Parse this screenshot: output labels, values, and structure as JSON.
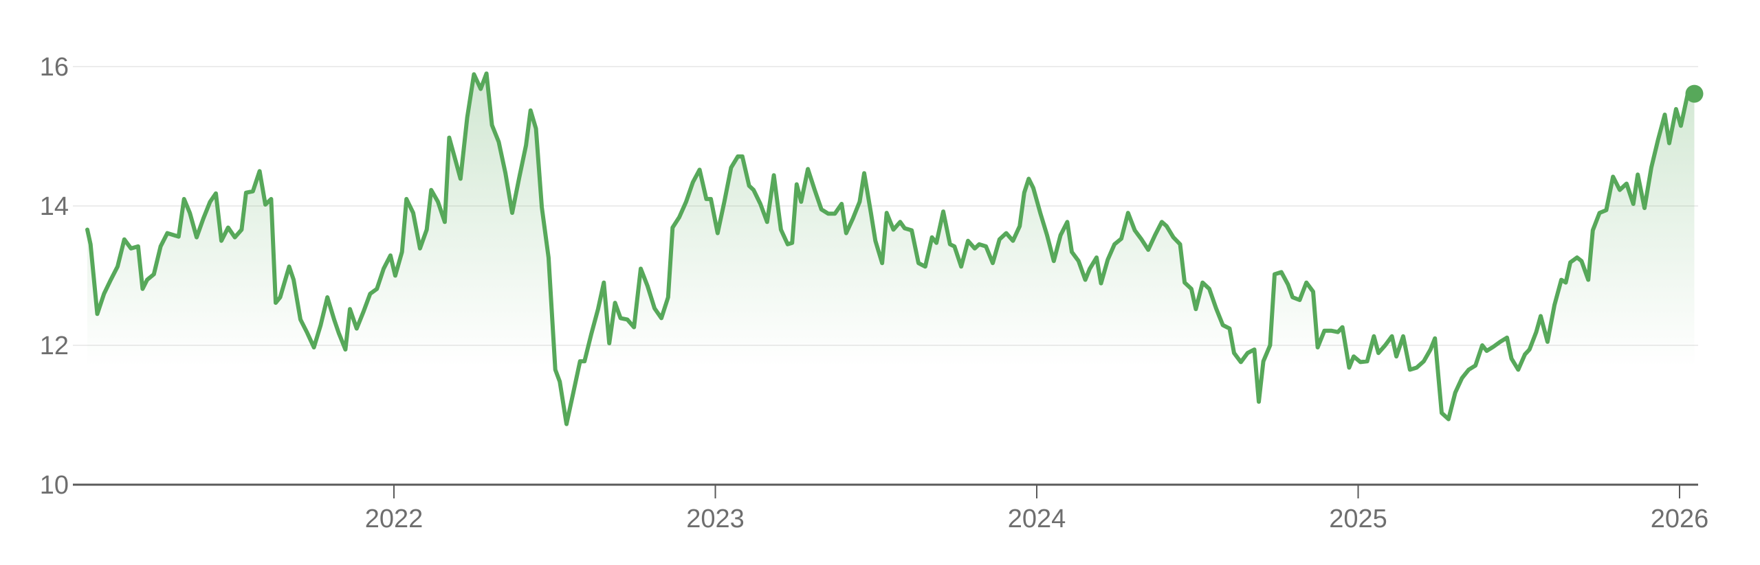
{
  "chart_data": {
    "type": "line",
    "title": "",
    "xlabel": "",
    "ylabel": "",
    "ylim": [
      10,
      16
    ],
    "yticks": [
      "10",
      "12",
      "14",
      "16"
    ],
    "xticks": [
      "2022",
      "2023",
      "2024",
      "2025",
      "2026"
    ],
    "grid": "horizontal",
    "line_color": "#57a85a",
    "fill": "green gradient area under line",
    "end_marker": true,
    "x": [
      2021.046,
      2021.056,
      2021.077,
      2021.098,
      2021.119,
      2021.14,
      2021.161,
      2021.182,
      2021.204,
      2021.218,
      2021.232,
      2021.253,
      2021.274,
      2021.295,
      2021.316,
      2021.33,
      2021.347,
      2021.365,
      2021.386,
      2021.407,
      2021.428,
      2021.446,
      2021.463,
      2021.484,
      2021.505,
      2021.526,
      2021.54,
      2021.561,
      2021.582,
      2021.6,
      2021.618,
      2021.632,
      2021.646,
      2021.674,
      2021.688,
      2021.709,
      2021.73,
      2021.751,
      2021.772,
      2021.793,
      2021.814,
      2021.828,
      2021.849,
      2021.863,
      2021.884,
      2021.905,
      2021.926,
      2021.947,
      2021.968,
      2021.989,
      2022.004,
      2022.025,
      2022.039,
      2022.06,
      2022.081,
      2022.102,
      2022.116,
      2022.137,
      2022.158,
      2022.172,
      2022.193,
      2022.207,
      2022.228,
      2022.249,
      2022.27,
      2022.288,
      2022.305,
      2022.326,
      2022.347,
      2022.368,
      2022.389,
      2022.411,
      2022.425,
      2022.442,
      2022.46,
      2022.481,
      2022.502,
      2022.516,
      2022.537,
      2022.558,
      2022.579,
      2022.593,
      2022.614,
      2022.635,
      2022.653,
      2022.67,
      2022.688,
      2022.705,
      2022.726,
      2022.747,
      2022.768,
      2022.789,
      2022.811,
      2022.832,
      2022.853,
      2022.867,
      2022.888,
      2022.909,
      2022.93,
      2022.951,
      2022.972,
      2022.986,
      2023.007,
      2023.028,
      2023.049,
      2023.07,
      2023.084,
      2023.105,
      2023.119,
      2023.14,
      2023.161,
      2023.182,
      2023.204,
      2023.225,
      2023.239,
      2023.253,
      2023.267,
      2023.288,
      2023.309,
      2023.33,
      2023.351,
      2023.372,
      2023.393,
      2023.407,
      2023.428,
      2023.449,
      2023.463,
      2023.484,
      2023.498,
      2023.519,
      2023.533,
      2023.554,
      2023.575,
      2023.589,
      2023.611,
      2023.632,
      2023.653,
      2023.674,
      2023.688,
      2023.709,
      2023.73,
      2023.744,
      2023.765,
      2023.786,
      2023.807,
      2023.821,
      2023.842,
      2023.863,
      2023.884,
      2023.905,
      2023.926,
      2023.947,
      2023.961,
      2023.975,
      2023.989,
      2024.011,
      2024.032,
      2024.053,
      2024.074,
      2024.095,
      2024.109,
      2024.13,
      2024.151,
      2024.165,
      2024.186,
      2024.2,
      2024.221,
      2024.242,
      2024.263,
      2024.284,
      2024.305,
      2024.326,
      2024.347,
      2024.368,
      2024.389,
      2024.404,
      2024.425,
      2024.446,
      2024.46,
      2024.481,
      2024.495,
      2024.516,
      2024.537,
      2024.558,
      2024.579,
      2024.6,
      2024.614,
      2024.635,
      2024.656,
      2024.677,
      2024.691,
      2024.705,
      2024.726,
      2024.74,
      2024.761,
      2024.782,
      2024.796,
      2024.818,
      2024.839,
      2024.86,
      2024.874,
      2024.895,
      2024.916,
      2024.937,
      2024.951,
      2024.972,
      2024.986,
      2025.007,
      2025.028,
      2025.049,
      2025.063,
      2025.084,
      2025.105,
      2025.119,
      2025.14,
      2025.161,
      2025.182,
      2025.204,
      2025.225,
      2025.239,
      2025.26,
      2025.281,
      2025.302,
      2025.323,
      2025.344,
      2025.365,
      2025.386,
      2025.4,
      2025.421,
      2025.442,
      2025.463,
      2025.477,
      2025.498,
      2025.519,
      2025.533,
      2025.554,
      2025.568,
      2025.589,
      2025.611,
      2025.632,
      2025.646,
      2025.66,
      2025.681,
      2025.695,
      2025.716,
      2025.73,
      2025.751,
      2025.772,
      2025.793,
      2025.814,
      2025.835,
      2025.856,
      2025.87,
      2025.891,
      2025.912,
      2025.933,
      2025.954,
      2025.968,
      2025.989,
      2026.004,
      2026.025,
      2026.046
    ],
    "values": [
      13.66,
      13.45,
      12.45,
      12.74,
      12.94,
      13.13,
      13.52,
      13.39,
      13.42,
      12.81,
      12.94,
      13.02,
      13.42,
      13.61,
      13.58,
      13.56,
      14.1,
      13.9,
      13.55,
      13.82,
      14.06,
      14.18,
      13.5,
      13.69,
      13.55,
      13.66,
      14.19,
      14.21,
      14.5,
      14.02,
      14.1,
      12.61,
      12.69,
      13.13,
      12.94,
      12.37,
      12.18,
      11.97,
      12.29,
      12.69,
      12.37,
      12.18,
      11.94,
      12.52,
      12.24,
      12.48,
      12.74,
      12.81,
      13.1,
      13.29,
      13.0,
      13.34,
      14.1,
      13.9,
      13.39,
      13.66,
      14.23,
      14.06,
      13.77,
      14.98,
      14.63,
      14.39,
      15.27,
      15.89,
      15.68,
      15.9,
      15.16,
      14.92,
      14.47,
      13.9,
      14.39,
      14.87,
      15.37,
      15.11,
      13.98,
      13.26,
      11.65,
      11.48,
      10.87,
      11.32,
      11.77,
      11.77,
      12.16,
      12.52,
      12.9,
      12.03,
      12.61,
      12.39,
      12.37,
      12.26,
      13.1,
      12.85,
      12.53,
      12.39,
      12.69,
      13.69,
      13.84,
      14.06,
      14.34,
      14.52,
      14.1,
      14.1,
      13.61,
      14.06,
      14.55,
      14.71,
      14.71,
      14.29,
      14.23,
      14.03,
      13.77,
      14.44,
      13.66,
      13.45,
      13.47,
      14.31,
      14.06,
      14.53,
      14.23,
      13.95,
      13.89,
      13.89,
      14.03,
      13.61,
      13.82,
      14.06,
      14.47,
      13.9,
      13.5,
      13.18,
      13.9,
      13.66,
      13.77,
      13.68,
      13.65,
      13.18,
      13.13,
      13.55,
      13.47,
      13.92,
      13.45,
      13.42,
      13.13,
      13.5,
      13.39,
      13.45,
      13.42,
      13.18,
      13.52,
      13.61,
      13.5,
      13.71,
      14.19,
      14.39,
      14.26,
      13.9,
      13.58,
      13.21,
      13.58,
      13.77,
      13.34,
      13.21,
      12.94,
      13.1,
      13.26,
      12.89,
      13.23,
      13.45,
      13.53,
      13.9,
      13.65,
      13.52,
      13.37,
      13.58,
      13.77,
      13.71,
      13.55,
      13.45,
      12.9,
      12.81,
      12.52,
      12.9,
      12.81,
      12.53,
      12.29,
      12.24,
      11.89,
      11.76,
      11.89,
      11.94,
      11.19,
      11.77,
      12.0,
      13.02,
      13.05,
      12.87,
      12.69,
      12.65,
      12.9,
      12.77,
      11.97,
      12.21,
      12.21,
      12.19,
      12.26,
      11.68,
      11.84,
      11.76,
      11.77,
      12.13,
      11.89,
      12.0,
      12.13,
      11.84,
      12.13,
      11.65,
      11.68,
      11.77,
      11.94,
      12.1,
      11.03,
      10.94,
      11.32,
      11.53,
      11.65,
      11.71,
      12.0,
      11.92,
      11.98,
      12.05,
      12.11,
      11.81,
      11.65,
      11.87,
      11.94,
      12.19,
      12.42,
      12.05,
      12.58,
      12.94,
      12.9,
      13.19,
      13.26,
      13.21,
      12.94,
      13.65,
      13.9,
      13.94,
      14.42,
      14.23,
      14.32,
      14.03,
      14.45,
      13.97,
      14.55,
      14.95,
      15.31,
      14.9,
      15.39,
      15.15,
      15.6,
      15.61
    ]
  }
}
